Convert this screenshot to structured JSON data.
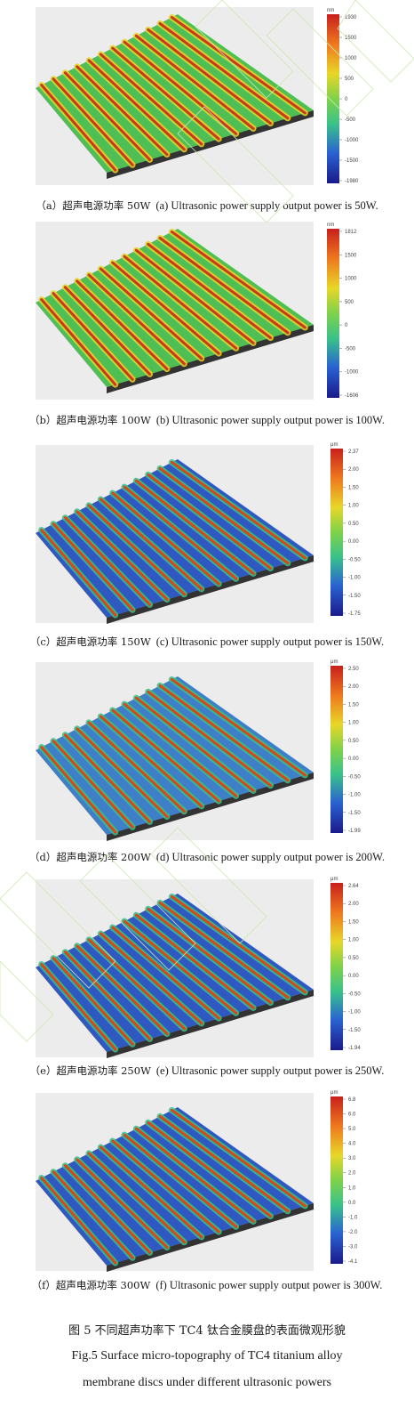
{
  "panels": [
    {
      "id": "a",
      "cn": "（a）超声电源功率 50W",
      "en": "(a) Ultrasonic power supply output power is 50W.",
      "unit": "nm",
      "ticks": [
        "1930",
        "1500",
        "1000",
        "500",
        "0",
        "-500",
        "-1000",
        "-1500",
        "-1980"
      ],
      "ridge_color": "#c83a1e",
      "valley_color": "#2a5fc8",
      "base": "green"
    },
    {
      "id": "b",
      "cn": "（b）超声电源功率 100W",
      "en": "(b) Ultrasonic power supply output power is 100W.",
      "unit": "nm",
      "ticks": [
        "1812",
        "1500",
        "1000",
        "500",
        "0",
        "-500",
        "-1000",
        "-1606"
      ],
      "ridge_color": "#c83a1e",
      "valley_color": "#2a5fc8",
      "base": "green"
    },
    {
      "id": "c",
      "cn": "（c）超声电源功率 150W",
      "en": "(c) Ultrasonic power supply output power is 150W.",
      "unit": "μm",
      "ticks": [
        "2.37",
        "2.00",
        "1.50",
        "1.00",
        "0.50",
        "0.00",
        "-0.50",
        "-1.00",
        "-1.50",
        "-1.75"
      ],
      "ridge_color": "#d2491a",
      "valley_color": "#1e3fb4",
      "base": "blue"
    },
    {
      "id": "d",
      "cn": "（d）超声电源功率 200W",
      "en": "(d) Ultrasonic power supply output power is 200W.",
      "unit": "μm",
      "ticks": [
        "2.50",
        "2.00",
        "1.50",
        "1.00",
        "0.50",
        "0.00",
        "-0.50",
        "-1.00",
        "-1.50",
        "-1.99"
      ],
      "ridge_color": "#d2491a",
      "valley_color": "#2a5fc8",
      "base": "mixed"
    },
    {
      "id": "e",
      "cn": "（e）超声电源功率 250W",
      "en": "(e) Ultrasonic power supply output power is 250W.",
      "unit": "μm",
      "ticks": [
        "2.64",
        "2.00",
        "1.50",
        "1.00",
        "0.50",
        "0.00",
        "-0.50",
        "-1.00",
        "-1.50",
        "-1.94"
      ],
      "ridge_color": "#d2491a",
      "valley_color": "#1e3fb4",
      "base": "blue"
    },
    {
      "id": "f",
      "cn": "（f）超声电源功率 300W",
      "en": "(f) Ultrasonic power supply output power is 300W.",
      "unit": "μm",
      "ticks": [
        "6.8",
        "6.0",
        "5.0",
        "4.0",
        "3.0",
        "2.0",
        "1.0",
        "0.0",
        "-1.0",
        "-2.0",
        "-3.0",
        "-4.1"
      ],
      "ridge_color": "#d2491a",
      "valley_color": "#1e3fb4",
      "base": "blue"
    }
  ],
  "figure_caption_cn": "图 5 不同超声功率下 TC4 钛合金膜盘的表面微观形貌",
  "figure_caption_en_1": "Fig.5 Surface micro-topography of TC4 titanium alloy",
  "figure_caption_en_2": "membrane discs under different ultrasonic powers"
}
